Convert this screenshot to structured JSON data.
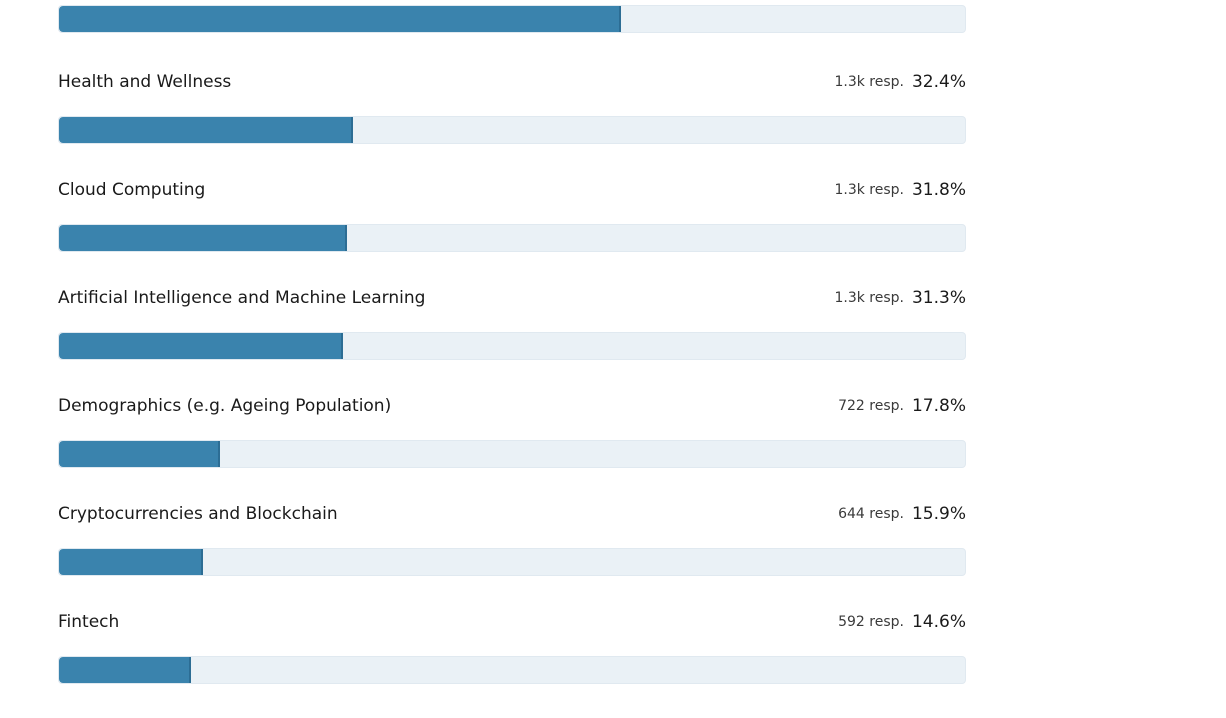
{
  "chart_data": {
    "type": "bar",
    "orientation": "horizontal",
    "colors": {
      "bar": "#3a83ad",
      "track": "#eaf1f6"
    },
    "top_partial_bar": {
      "value": 62.0
    },
    "rows": [
      {
        "label": "Health and Wellness",
        "responses": "1.3k resp.",
        "percent_label": "32.4%",
        "value": 32.4
      },
      {
        "label": "Cloud Computing",
        "responses": "1.3k resp.",
        "percent_label": "31.8%",
        "value": 31.8
      },
      {
        "label": "Artificial Intelligence and Machine Learning",
        "responses": "1.3k resp.",
        "percent_label": "31.3%",
        "value": 31.3
      },
      {
        "label": "Demographics (e.g. Ageing Population)",
        "responses": "722 resp.",
        "percent_label": "17.8%",
        "value": 17.8
      },
      {
        "label": "Cryptocurrencies and Blockchain",
        "responses": "644 resp.",
        "percent_label": "15.9%",
        "value": 15.9
      },
      {
        "label": "Fintech",
        "responses": "592 resp.",
        "percent_label": "14.6%",
        "value": 14.6
      }
    ],
    "xlim": [
      0,
      100
    ]
  }
}
